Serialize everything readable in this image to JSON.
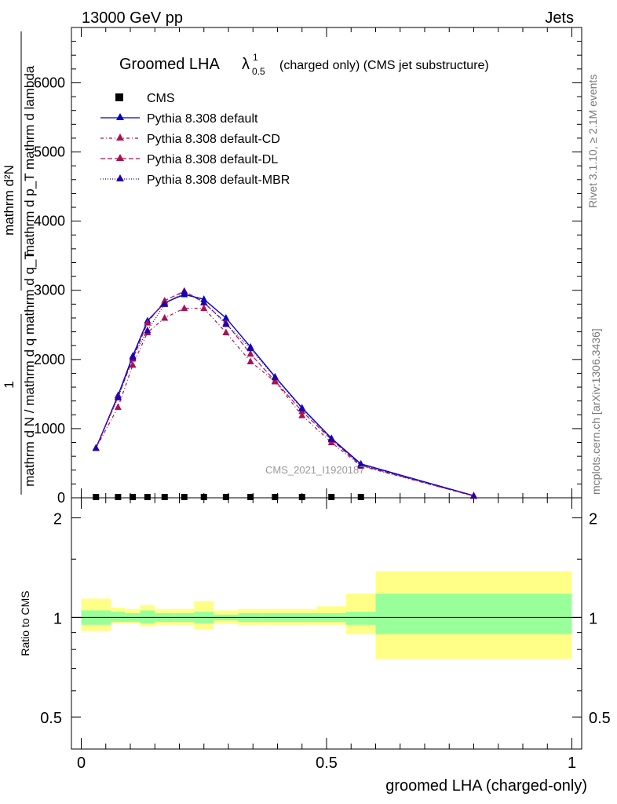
{
  "header": {
    "left": "13000 GeV pp",
    "right": "Jets"
  },
  "side": {
    "rivet": "Rivet 3.1.10, ≥ 2.1M events",
    "mcplots": "mcplots.cern.ch [arXiv:1306.3436]"
  },
  "watermark": "CMS_2021_I1920187",
  "colors": {
    "default": "#0000cc",
    "cd": "#aa1155",
    "dl": "#aa1155",
    "mbr": "#2200aa",
    "band_inner": "#99ff99",
    "band_outer": "#ffff88"
  },
  "chart_data": [
    {
      "type": "line",
      "title_main": "Groomed LHA",
      "title_lambda": "λ",
      "title_sup": "1",
      "title_sub": "0.5",
      "title_rest": "(charged only) (CMS jet substructure)",
      "ylabel_num_top": "mathrm d²N",
      "ylabel_num_bottom": "mathrm d p_T mathrm d lambda",
      "ylabel_one": "1",
      "ylabel_den": "mathrm d N / mathrm d q mathrm d q_T",
      "xlim": [
        -0.02,
        1.02
      ],
      "ylim": [
        0,
        6800
      ],
      "yticks": [
        0,
        1000,
        2000,
        3000,
        4000,
        5000,
        6000
      ],
      "ytick_labels": [
        "0",
        "1000",
        "2000",
        "3000",
        "4000",
        "5000",
        "6000"
      ],
      "legend": [
        {
          "key": "cms",
          "label": "CMS"
        },
        {
          "key": "default",
          "label": "Pythia 8.308 default"
        },
        {
          "key": "cd",
          "label": "Pythia 8.308 default-CD"
        },
        {
          "key": "dl",
          "label": "Pythia 8.308 default-DL"
        },
        {
          "key": "mbr",
          "label": "Pythia 8.308 default-MBR"
        }
      ],
      "cms": {
        "x": [
          0.03,
          0.075,
          0.105,
          0.135,
          0.17,
          0.21,
          0.25,
          0.295,
          0.345,
          0.395,
          0.45,
          0.51,
          0.57
        ],
        "y": [
          0,
          0,
          0,
          0,
          0,
          0,
          0,
          0,
          0,
          0,
          0,
          0,
          0
        ]
      },
      "series": [
        {
          "key": "default",
          "x": [
            0.03,
            0.075,
            0.105,
            0.135,
            0.17,
            0.21,
            0.25,
            0.295,
            0.345,
            0.395,
            0.45,
            0.51,
            0.57,
            0.8
          ],
          "y": [
            720,
            1480,
            2050,
            2560,
            2820,
            2940,
            2870,
            2600,
            2180,
            1750,
            1300,
            860,
            490,
            30
          ]
        },
        {
          "key": "cd",
          "x": [
            0.03,
            0.075,
            0.105,
            0.135,
            0.17,
            0.21,
            0.25,
            0.295,
            0.345,
            0.395,
            0.45,
            0.51,
            0.57,
            0.8
          ],
          "y": [
            720,
            1310,
            1920,
            2390,
            2600,
            2740,
            2740,
            2390,
            1970,
            1680,
            1190,
            800,
            460,
            25
          ]
        },
        {
          "key": "dl",
          "x": [
            0.03,
            0.075,
            0.105,
            0.135,
            0.17,
            0.21,
            0.25,
            0.295,
            0.345,
            0.395,
            0.45,
            0.51,
            0.57,
            0.8
          ],
          "y": [
            720,
            1460,
            2010,
            2530,
            2850,
            2990,
            2820,
            2530,
            2080,
            1690,
            1250,
            840,
            470,
            25
          ]
        },
        {
          "key": "mbr",
          "x": [
            0.03,
            0.075,
            0.105,
            0.135,
            0.17,
            0.21,
            0.25,
            0.295,
            0.345,
            0.395,
            0.45,
            0.51,
            0.57,
            0.8
          ],
          "y": [
            720,
            1450,
            2030,
            2420,
            2800,
            2980,
            2830,
            2510,
            2160,
            1740,
            1290,
            850,
            470,
            30
          ]
        }
      ]
    },
    {
      "type": "area",
      "ylabel": "Ratio to CMS",
      "xlabel": "groomed LHA (charged-only)",
      "xlim": [
        -0.02,
        1.02
      ],
      "ylim": [
        0.4,
        2.3
      ],
      "yticks": [
        0.5,
        1,
        2
      ],
      "ytick_labels": [
        "0.5",
        "1",
        "2"
      ],
      "xticks": [
        0,
        0.5,
        1
      ],
      "xtick_labels": [
        "0",
        "0.5",
        "1"
      ],
      "bins": [
        0.0,
        0.06,
        0.09,
        0.12,
        0.15,
        0.19,
        0.23,
        0.27,
        0.32,
        0.37,
        0.42,
        0.48,
        0.54,
        0.6,
        1.0
      ],
      "inner_band": [
        [
          0.95,
          1.05
        ],
        [
          0.97,
          1.04
        ],
        [
          0.97,
          1.03
        ],
        [
          0.96,
          1.05
        ],
        [
          0.97,
          1.03
        ],
        [
          0.97,
          1.03
        ],
        [
          0.96,
          1.04
        ],
        [
          0.98,
          1.02
        ],
        [
          0.97,
          1.03
        ],
        [
          0.97,
          1.03
        ],
        [
          0.97,
          1.03
        ],
        [
          0.97,
          1.03
        ],
        [
          0.95,
          1.04
        ],
        [
          0.89,
          1.18
        ]
      ],
      "outer_band": [
        [
          0.91,
          1.14
        ],
        [
          0.96,
          1.07
        ],
        [
          0.96,
          1.06
        ],
        [
          0.94,
          1.09
        ],
        [
          0.95,
          1.06
        ],
        [
          0.95,
          1.06
        ],
        [
          0.92,
          1.12
        ],
        [
          0.96,
          1.05
        ],
        [
          0.95,
          1.06
        ],
        [
          0.95,
          1.06
        ],
        [
          0.95,
          1.06
        ],
        [
          0.95,
          1.08
        ],
        [
          0.89,
          1.18
        ],
        [
          0.75,
          1.38
        ]
      ]
    }
  ]
}
